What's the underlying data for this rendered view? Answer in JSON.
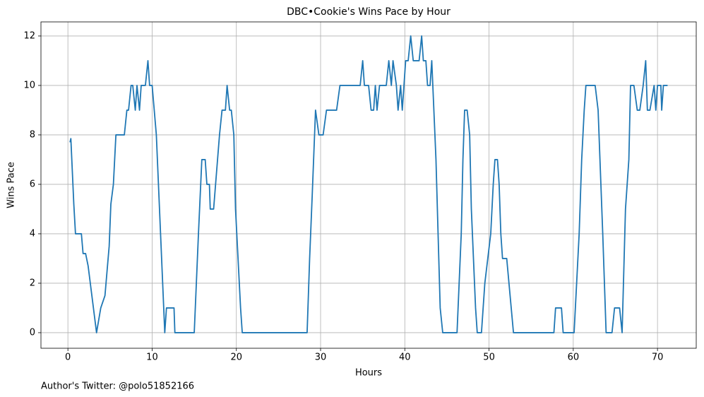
{
  "chart_data": {
    "type": "line",
    "title": "DBC•Cookie's Wins Pace by Hour",
    "xlabel": "Hours",
    "ylabel": "Wins Pace",
    "footnote": "Author's Twitter: @polo51852166",
    "x": [
      0.25,
      0.35,
      0.7,
      0.9,
      1.6,
      1.8,
      2.1,
      2.4,
      3.4,
      3.9,
      4.4,
      4.9,
      5.1,
      5.4,
      5.7,
      6.7,
      7.0,
      7.2,
      7.5,
      7.7,
      8.0,
      8.2,
      8.5,
      8.7,
      9.2,
      9.5,
      9.7,
      10.0,
      10.5,
      11.0,
      11.5,
      11.7,
      12.6,
      12.7,
      15.0,
      15.5,
      15.9,
      16.3,
      16.5,
      16.8,
      16.9,
      17.3,
      18.0,
      18.3,
      18.7,
      18.9,
      19.2,
      19.4,
      19.7,
      19.9,
      20.5,
      20.7,
      28.4,
      28.7,
      29.0,
      29.4,
      29.8,
      30.3,
      30.7,
      31.9,
      32.3,
      34.7,
      35.0,
      35.2,
      35.7,
      36.0,
      36.3,
      36.5,
      36.7,
      37.0,
      37.8,
      38.1,
      38.4,
      38.6,
      39.0,
      39.2,
      39.5,
      39.7,
      40.1,
      40.4,
      40.7,
      41.0,
      41.7,
      42.0,
      42.2,
      42.5,
      42.7,
      43.0,
      43.2,
      43.7,
      44.2,
      44.5,
      46.2,
      46.7,
      46.9,
      47.1,
      47.4,
      47.7,
      47.9,
      48.4,
      48.6,
      49.1,
      49.5,
      50.2,
      50.5,
      50.7,
      51.0,
      51.2,
      51.4,
      51.6,
      52.1,
      52.9,
      57.7,
      57.9,
      58.6,
      58.8,
      60.1,
      60.7,
      61.0,
      61.3,
      61.5,
      62.6,
      62.95,
      63.5,
      63.9,
      64.6,
      64.9,
      65.5,
      65.8,
      66.2,
      66.6,
      66.8,
      67.2,
      67.6,
      67.9,
      68.3,
      68.6,
      68.8,
      69.1,
      69.6,
      69.8,
      70.0,
      70.4,
      70.5,
      70.7,
      71.2
    ],
    "series": [
      {
        "name": "Wins Pace",
        "color": "#1f77b4",
        "values": [
          7.7,
          7.85,
          5.2,
          4,
          4,
          3.2,
          3.2,
          2.7,
          0,
          1,
          1.5,
          3.5,
          5.2,
          6,
          8,
          8,
          9,
          9,
          10,
          10,
          9,
          10,
          9,
          10,
          10,
          11,
          10,
          10,
          8,
          4,
          0,
          1,
          1,
          0,
          0,
          4,
          7,
          7,
          6,
          6,
          5,
          5,
          8,
          9,
          9,
          10,
          9,
          9,
          8,
          5,
          1,
          0,
          0,
          3,
          5.5,
          9,
          8,
          8,
          9,
          9,
          10,
          10,
          11,
          10,
          10,
          9,
          9,
          10,
          9,
          10,
          10,
          11,
          10,
          11,
          10,
          9,
          10,
          9,
          11,
          11,
          12,
          11,
          11,
          12,
          11,
          11,
          10,
          10,
          11,
          7,
          1,
          0,
          0,
          4,
          7,
          9,
          9,
          8,
          5,
          1,
          0,
          0,
          2,
          4,
          6,
          7,
          7,
          6,
          4,
          3,
          3,
          0,
          0,
          1,
          1,
          0,
          0,
          4,
          7,
          9,
          10,
          10,
          9,
          4,
          0,
          0,
          1,
          1,
          0,
          5,
          7,
          10,
          10,
          9,
          9,
          10,
          11,
          9,
          9,
          10,
          9,
          10,
          10,
          9,
          10,
          10
        ]
      }
    ],
    "xlim": [
      -3.2,
      74.6
    ],
    "ylim": [
      -0.63,
      12.57
    ],
    "xticks": [
      0,
      10,
      20,
      30,
      40,
      50,
      60,
      70
    ],
    "yticks": [
      0,
      2,
      4,
      6,
      8,
      10,
      12
    ],
    "grid": true
  }
}
